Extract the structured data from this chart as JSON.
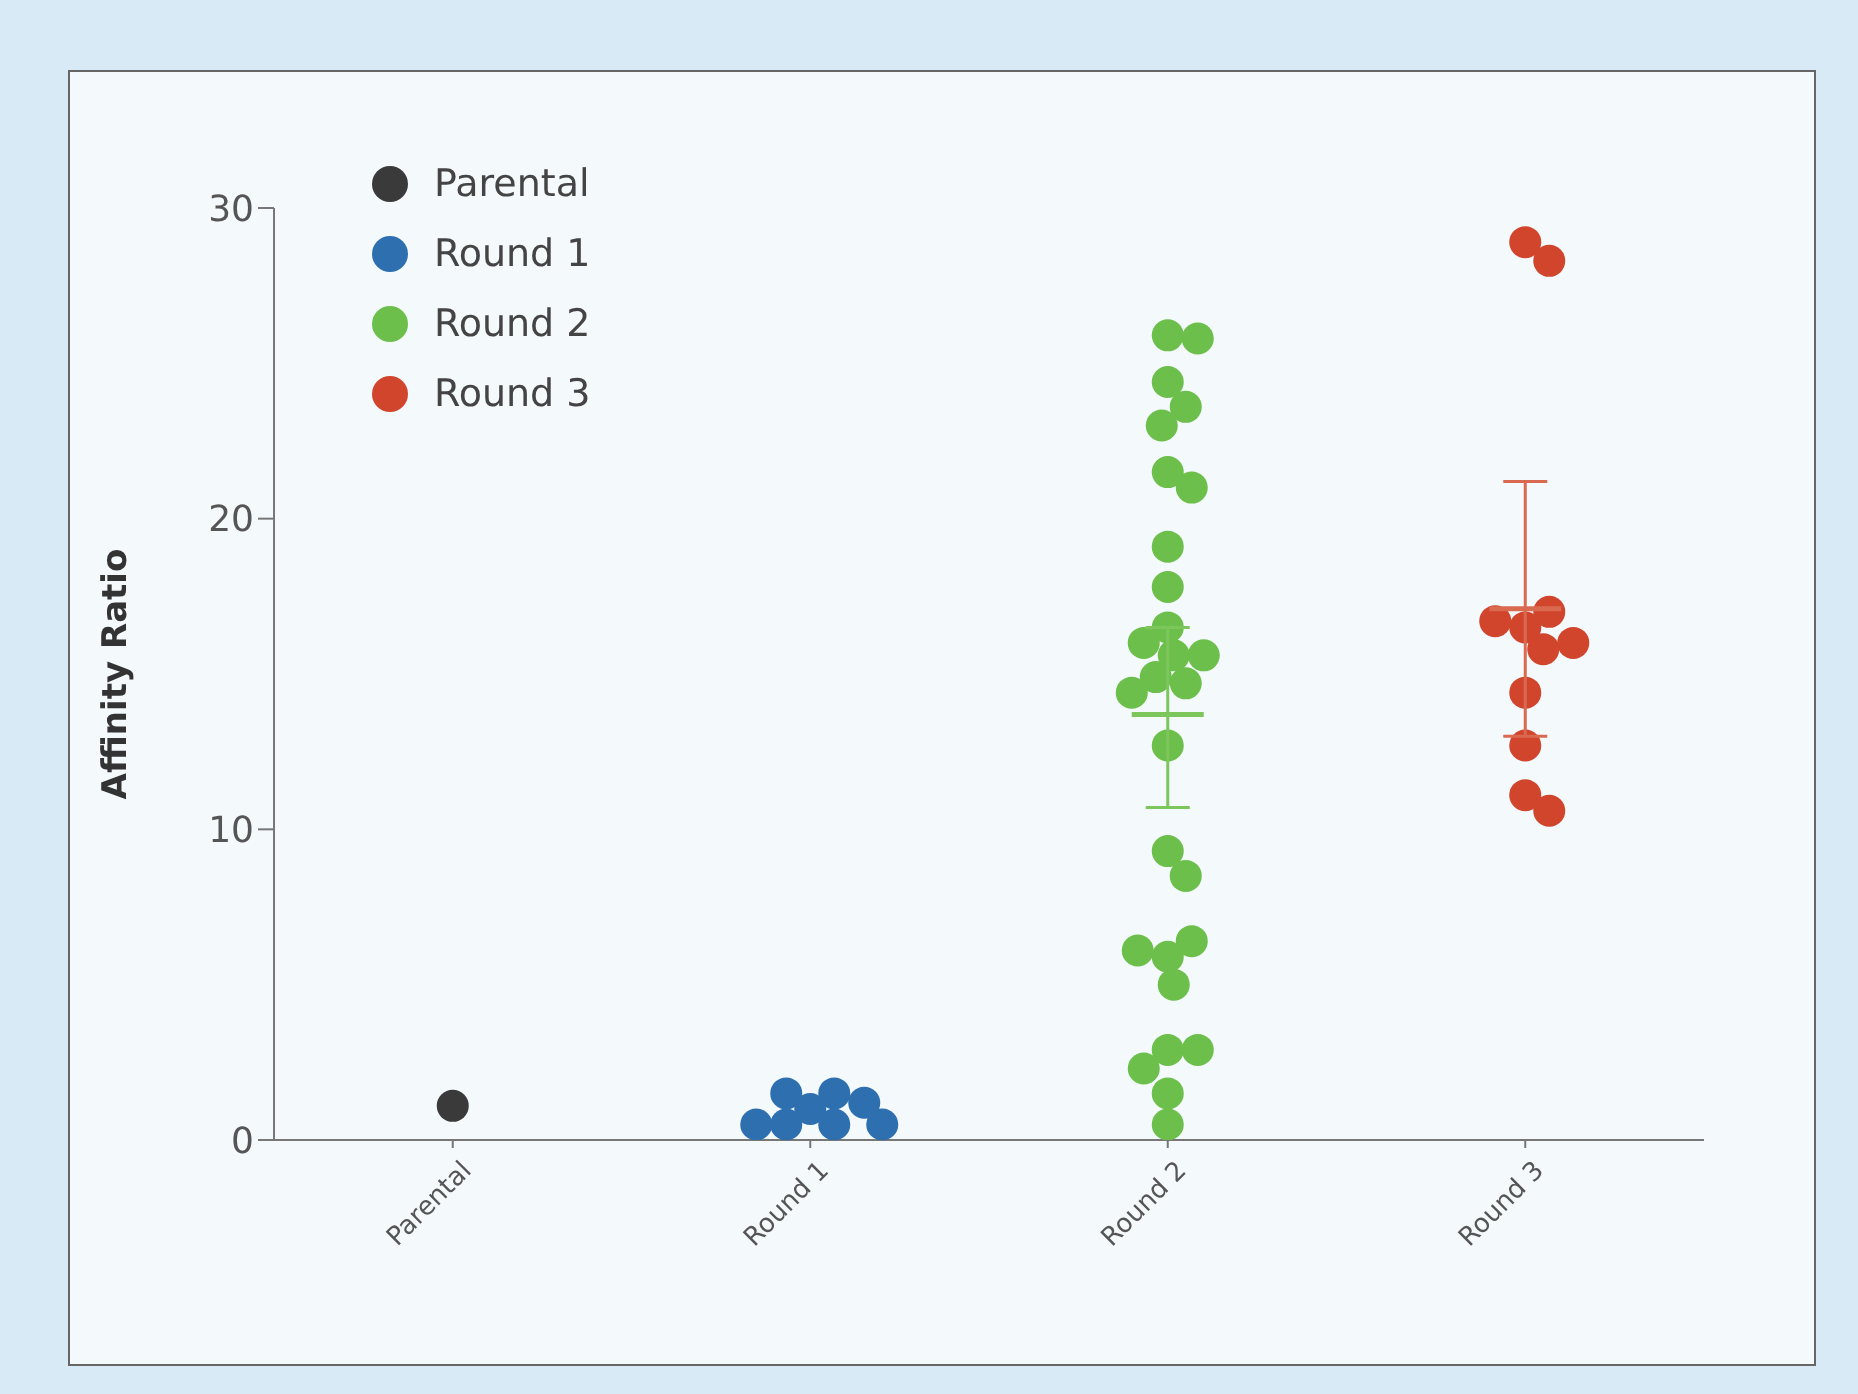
{
  "chart_data": {
    "type": "scatter",
    "ylabel": "Affinity Ratio",
    "categories": [
      "Parental",
      "Round 1",
      "Round 2",
      "Round 3"
    ],
    "ylim": [
      0,
      30
    ],
    "yticks": [
      0,
      10,
      20,
      30
    ],
    "grid": false,
    "legend": "top left",
    "marker": "circle",
    "series": [
      {
        "name": "Parental",
        "color": "#3a3a3a",
        "x": [
          "Parental"
        ],
        "values": [
          1.1
        ]
      },
      {
        "name": "Round 1",
        "color": "#2e6fb0",
        "x": [
          "Round 1",
          "Round 1",
          "Round 1",
          "Round 1",
          "Round 1",
          "Round 1",
          "Round 1",
          "Round 1"
        ],
        "values": [
          1.0,
          1.5,
          1.5,
          1.2,
          0.5,
          0.5,
          0.5,
          0.5
        ]
      },
      {
        "name": "Round 2",
        "color": "#6cbf4a",
        "x": [
          "Round 2",
          "Round 2",
          "Round 2",
          "Round 2",
          "Round 2",
          "Round 2",
          "Round 2",
          "Round 2",
          "Round 2",
          "Round 2",
          "Round 2",
          "Round 2",
          "Round 2",
          "Round 2",
          "Round 2",
          "Round 2",
          "Round 2",
          "Round 2",
          "Round 2",
          "Round 2",
          "Round 2",
          "Round 2",
          "Round 2",
          "Round 2",
          "Round 2",
          "Round 2",
          "Round 2",
          "Round 2"
        ],
        "values": [
          25.9,
          25.8,
          24.4,
          23.6,
          23.0,
          21.5,
          21.0,
          19.1,
          17.8,
          16.5,
          15.6,
          16.0,
          15.6,
          14.9,
          14.7,
          14.4,
          12.7,
          9.3,
          8.5,
          5.9,
          6.4,
          6.1,
          5.0,
          2.9,
          2.9,
          2.3,
          1.5,
          0.5
        ]
      },
      {
        "name": "Round 3",
        "color": "#d0452c",
        "x": [
          "Round 3",
          "Round 3",
          "Round 3",
          "Round 3",
          "Round 3",
          "Round 3",
          "Round 3",
          "Round 3",
          "Round 3",
          "Round 3",
          "Round 3"
        ],
        "values": [
          28.9,
          28.3,
          16.5,
          17.0,
          16.7,
          15.8,
          16.0,
          14.4,
          12.7,
          11.1,
          10.6
        ]
      },
      {
        "type": "box",
        "x": [
          "Round 2",
          "Round 3"
        ],
        "boxes": [
          {
            "low": 10.7,
            "q1": 13.7,
            "median": 13.7,
            "q3": 13.7,
            "high": 16.5
          },
          {
            "low": 13.0,
            "q1": 17.1,
            "median": 17.1,
            "q3": 17.1,
            "high": 21.2
          }
        ],
        "colors": [
          "#7cc65c",
          "#d9694f"
        ]
      }
    ]
  }
}
